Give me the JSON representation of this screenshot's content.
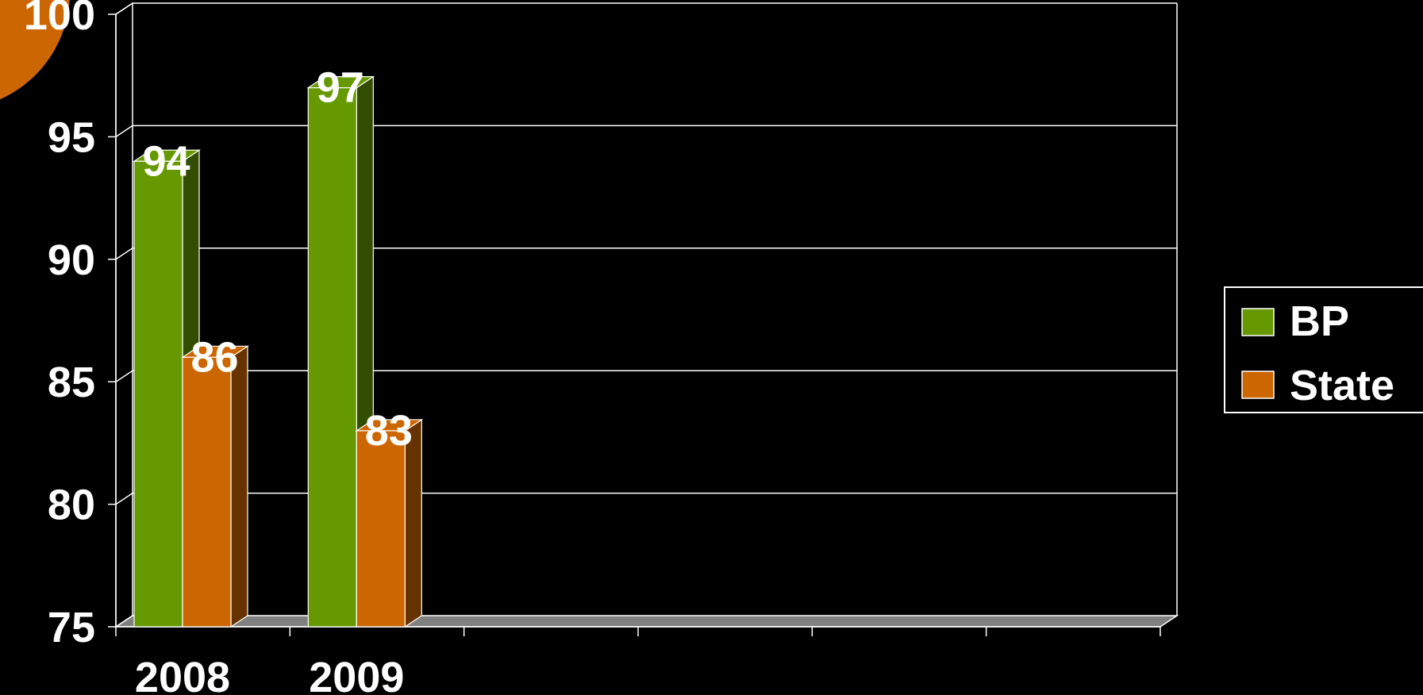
{
  "chart_data": {
    "type": "bar",
    "style": "3d-clustered-column",
    "categories": [
      "2008",
      "2009",
      "",
      "",
      "",
      ""
    ],
    "series": [
      {
        "name": "BP",
        "values": [
          94,
          97,
          null,
          null,
          null,
          null
        ],
        "color": "#669900",
        "side_color": "#334d00"
      },
      {
        "name": "State",
        "values": [
          86,
          83,
          null,
          null,
          null,
          null
        ],
        "color": "#cc6600",
        "side_color": "#663300"
      }
    ],
    "ylim": [
      75,
      100
    ],
    "y_ticks": [
      75,
      80,
      85,
      90,
      95,
      100
    ],
    "grid": true,
    "legend": "right",
    "data_labels": true
  },
  "colors": {
    "background": "#000000",
    "grid": "#ffffff",
    "text": "#ffffff",
    "floor": "#808080",
    "decoration": "#cc6600"
  }
}
